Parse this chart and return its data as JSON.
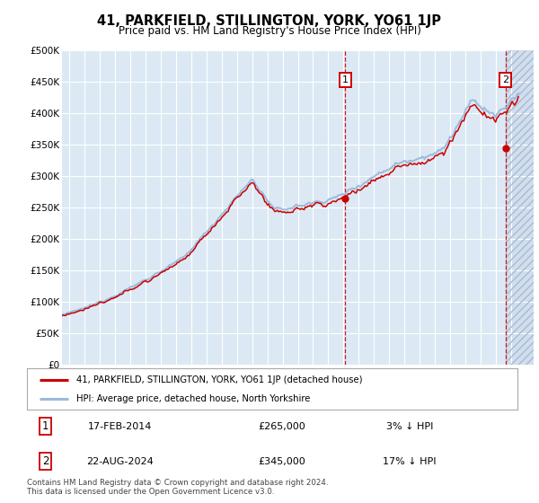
{
  "title": "41, PARKFIELD, STILLINGTON, YORK, YO61 1JP",
  "subtitle": "Price paid vs. HM Land Registry's House Price Index (HPI)",
  "hpi_color": "#99bbdd",
  "price_color": "#cc0000",
  "bg_color": "#dce9f5",
  "grid_color": "#ffffff",
  "transaction1_date": "17-FEB-2014",
  "transaction1_price": 265000,
  "transaction1_pct": "3%",
  "transaction1_year": 2014.12,
  "transaction2_date": "22-AUG-2024",
  "transaction2_price": 345000,
  "transaction2_pct": "17%",
  "transaction2_year": 2024.64,
  "legend_line1": "41, PARKFIELD, STILLINGTON, YORK, YO61 1JP (detached house)",
  "legend_line2": "HPI: Average price, detached house, North Yorkshire",
  "footer1": "Contains HM Land Registry data © Crown copyright and database right 2024.",
  "footer2": "This data is licensed under the Open Government Licence v3.0.",
  "xlim_start": 1995.5,
  "xlim_end": 2026.5,
  "ylim": [
    0,
    500000
  ],
  "yticks": [
    0,
    50000,
    100000,
    150000,
    200000,
    250000,
    300000,
    350000,
    400000,
    450000,
    500000
  ],
  "ytick_labels": [
    "£0",
    "£50K",
    "£100K",
    "£150K",
    "£200K",
    "£250K",
    "£300K",
    "£350K",
    "£400K",
    "£450K",
    "£500K"
  ]
}
